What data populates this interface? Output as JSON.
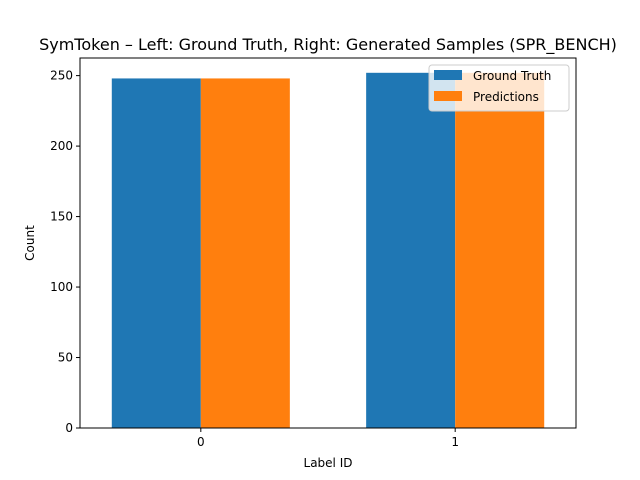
{
  "chart_data": {
    "type": "bar",
    "title": "SymToken – Left: Ground Truth, Right: Generated Samples (SPR_BENCH)",
    "xlabel": "Label ID",
    "ylabel": "Count",
    "categories": [
      "0",
      "1"
    ],
    "series": [
      {
        "name": "Ground Truth",
        "values": [
          248,
          252
        ],
        "color": "#1f77b4"
      },
      {
        "name": "Predictions",
        "values": [
          248,
          252
        ],
        "color": "#ff7f0e"
      }
    ],
    "ylim": [
      0,
      262.5
    ],
    "yticks": [
      0,
      50,
      100,
      150,
      200,
      250
    ],
    "grid": false,
    "legend_position": "top-right"
  }
}
